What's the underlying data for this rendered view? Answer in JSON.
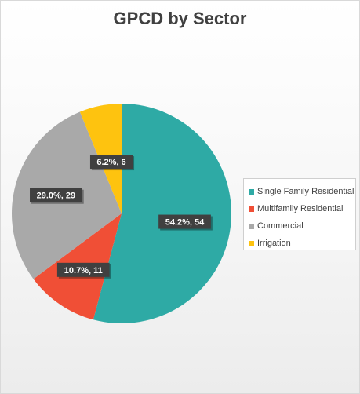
{
  "chart_data": {
    "type": "pie",
    "title": "GPCD by Sector",
    "categories": [
      "Single Family Residential",
      "Multifamily Residential",
      "Commercial",
      "Irrigation"
    ],
    "values": [
      54,
      11,
      29,
      6
    ],
    "percents": [
      54.2,
      10.7,
      29.0,
      6.2
    ],
    "data_labels": [
      "54.2%, 54",
      "10.7%, 11",
      "29.0%, 29",
      "6.2%, 6"
    ],
    "colors": [
      "#2eaaa5",
      "#f04f36",
      "#a9a9a9",
      "#fec30f"
    ],
    "start": "12 o'clock",
    "direction": "clockwise",
    "legend_position": "right"
  }
}
